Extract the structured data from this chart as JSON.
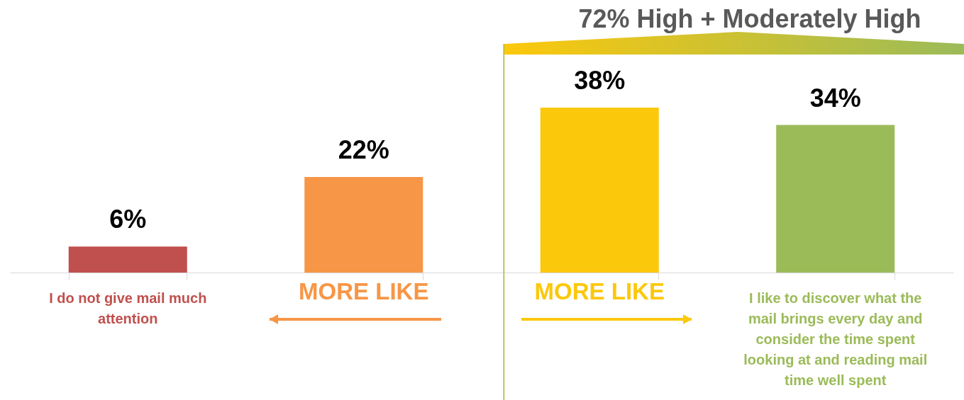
{
  "chart_data": {
    "type": "bar",
    "categories": [
      "I do not give mail much attention",
      "MORE LIKE",
      "MORE LIKE",
      "I like to discover what the mail brings every day and consider the time spent looking at and reading mail time well spent"
    ],
    "values": [
      6,
      22,
      38,
      34
    ],
    "colors": [
      "#c0504d",
      "#f79646",
      "#fcc80c",
      "#9bbb59"
    ],
    "value_labels": [
      "6%",
      "22%",
      "38%",
      "34%"
    ],
    "annotations": [
      "72% High + Moderately High"
    ],
    "grid": false
  }
}
